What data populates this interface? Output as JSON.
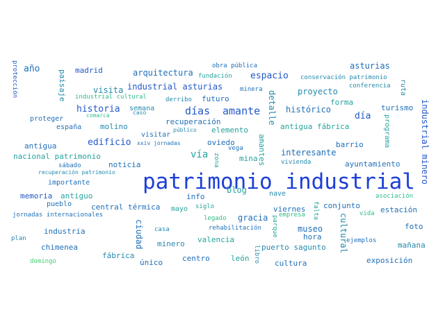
{
  "wordcloud": {
    "main": "patrimonio industrial",
    "words": {
      "w1": "año",
      "w2": "madrid",
      "w3": "arquitectura",
      "w4": "obra pública",
      "w5": "asturias",
      "w6": "fundación",
      "w7": "espacio",
      "w8": "conservación patrimonio",
      "w9": "ruta",
      "w10": "protección",
      "w11": "paisaje",
      "w12": "visita",
      "w13": "industrial asturias",
      "w14": "minera",
      "w15": "proyecto",
      "w16": "conferencia",
      "w17": "industrial cultural",
      "w18": "derribo",
      "w19": "detalle",
      "w20": "forma",
      "w21": "historia",
      "w22": "semana",
      "w23": "caso",
      "w24": "días",
      "w25": "amante",
      "w26": "histórico",
      "w27": "turismo",
      "w28": "proteger",
      "w29": "comarca",
      "w30": "recuperación",
      "w31": "día",
      "w32": "españa",
      "w33": "molino",
      "w34": "visitar",
      "w35": "público",
      "w36": "elemento",
      "w37": "antigua fábrica",
      "w38": "programa",
      "w39": "industrial minero",
      "w40": "edificio",
      "w41": "oviedo",
      "w42": "antigua",
      "w43": "xxiv jornadas",
      "w44": "vega",
      "w45": "barrio",
      "w46": "nacional patrimonio",
      "w47": "vía",
      "w48": "mina",
      "w49": "interesante",
      "w50": "sábado",
      "w51": "noticia",
      "w52": "zona",
      "w53": "amantes",
      "w54": "vivienda",
      "w55": "ayuntamiento",
      "w56": "recuperación patrimonio",
      "w57": "importante",
      "w58": "blog",
      "w59": "nave",
      "w60": "memoria",
      "w61": "antiguo",
      "w62": "asociación",
      "w63": "pueblo",
      "w64": "central térmica",
      "w65": "mayo",
      "w66": "siglo",
      "w67": "viernes",
      "w68": "falta",
      "w69": "conjunto",
      "w70": "estación",
      "w71": "jornadas internacionales",
      "w72": "legado",
      "w73": "empresa",
      "w74": "vida",
      "w75": "industria",
      "w76": "ciudad",
      "w77": "casa",
      "w78": "rehabilitación",
      "w79": "parque",
      "w80": "museo",
      "w81": "cultural",
      "w82": "foto",
      "w83": "plan",
      "w84": "minero",
      "w85": "valencia",
      "w86": "gracia",
      "w87": "hora",
      "w88": "chimenea",
      "w89": "puerto sagunto",
      "w90": "ejemplos",
      "w91": "mañana",
      "w92": "fábrica",
      "w93": "centro",
      "w94": "león",
      "w95": "libro",
      "w96": "domingo",
      "w97": "único",
      "w98": "exposición",
      "w99": "cultura",
      "w100": "info",
      "w101": "futuro"
    },
    "palette": [
      "#1c3fd6",
      "#2257c8",
      "#1f6fb8",
      "#2589ad",
      "#24a39c",
      "#2fbd86",
      "#3fd06e"
    ]
  }
}
